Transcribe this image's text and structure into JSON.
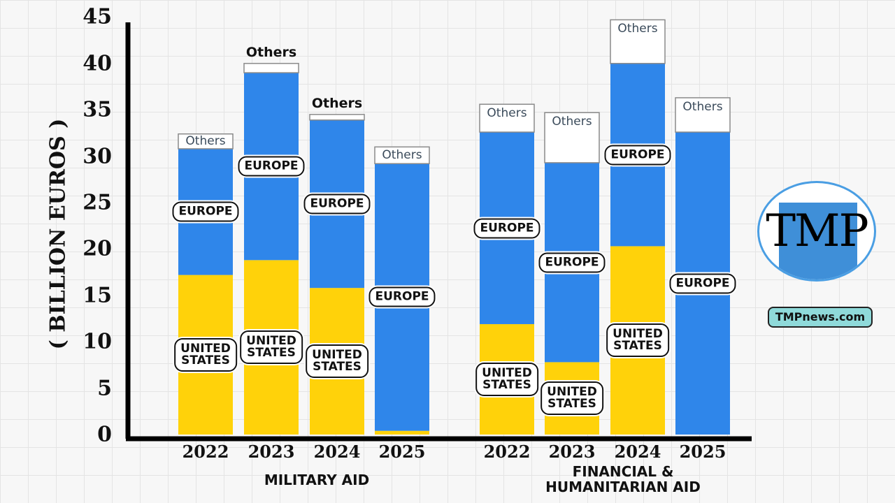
{
  "chart_data": {
    "type": "bar",
    "stacked": true,
    "ylabel": "( BILLION EUROS )",
    "ylim": [
      0,
      45
    ],
    "yticks": [
      "0",
      "5",
      "10",
      "15",
      "20",
      "25",
      "30",
      "35",
      "40",
      "45"
    ],
    "colors": {
      "united_states": "#ffd20a",
      "europe": "#2f86ea",
      "others": "#ffffff"
    },
    "groups": [
      {
        "name": "MILITARY AID",
        "categories": [
          "2022",
          "2023",
          "2024",
          "2025"
        ],
        "series": [
          {
            "name": "UNITED STATES",
            "values": [
              17.2,
              18.8,
              15.8,
              0.4
            ]
          },
          {
            "name": "EUROPE",
            "values": [
              13.6,
              20.2,
              18.1,
              28.8
            ]
          },
          {
            "name": "Others",
            "values": [
              1.6,
              1.0,
              0.6,
              1.8
            ]
          }
        ]
      },
      {
        "name": "FINANCIAL &\nHUMANITARIAN AID",
        "categories": [
          "2022",
          "2023",
          "2024",
          "2025"
        ],
        "series": [
          {
            "name": "UNITED STATES",
            "values": [
              11.9,
              7.8,
              20.3,
              0
            ]
          },
          {
            "name": "EUROPE",
            "values": [
              20.7,
              21.5,
              19.7,
              32.6
            ]
          },
          {
            "name": "Others",
            "values": [
              3.0,
              5.4,
              4.7,
              3.7
            ]
          }
        ]
      }
    ]
  },
  "branding": {
    "logo_text": "TMP",
    "site": "TMPnews.com"
  }
}
